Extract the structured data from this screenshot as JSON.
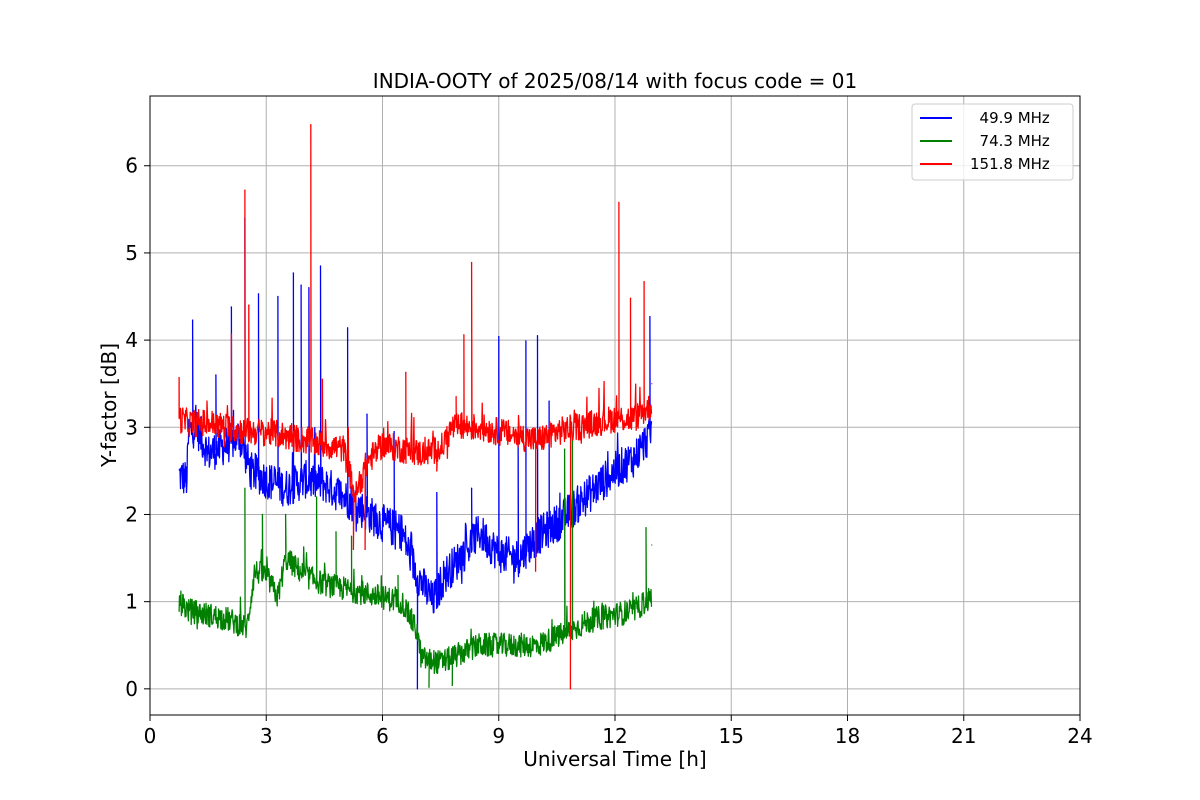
{
  "chart_data": {
    "type": "line",
    "title": "INDIA-OOTY of 2025/08/14 with focus code = 01",
    "xlabel": "Universal Time [h]",
    "ylabel": "Y-factor [dB]",
    "xlim": [
      0,
      24
    ],
    "ylim": [
      -0.3,
      6.8
    ],
    "xticks": [
      0,
      3,
      6,
      9,
      12,
      15,
      18,
      21,
      24
    ],
    "xtick_labels": [
      "0",
      "3",
      "6",
      "9",
      "12",
      "15",
      "18",
      "21",
      "24"
    ],
    "yticks": [
      0,
      1,
      2,
      3,
      4,
      5,
      6
    ],
    "ytick_labels": [
      "0",
      "1",
      "2",
      "3",
      "4",
      "5",
      "6"
    ],
    "grid": true,
    "legend_position": "top-right",
    "series": [
      {
        "name": "  49.9 MHz",
        "color": "#0000ff",
        "noise": 0.22,
        "baseline": [
          [
            0.75,
            2.45
          ],
          [
            0.95,
            2.4
          ],
          [
            1.0,
            2.95
          ],
          [
            1.2,
            3.0
          ],
          [
            1.5,
            2.7
          ],
          [
            2.0,
            2.8
          ],
          [
            2.3,
            2.9
          ],
          [
            2.6,
            2.5
          ],
          [
            3.0,
            2.4
          ],
          [
            3.5,
            2.3
          ],
          [
            4.0,
            2.4
          ],
          [
            4.5,
            2.35
          ],
          [
            5.0,
            2.2
          ],
          [
            5.5,
            2.05
          ],
          [
            6.0,
            1.9
          ],
          [
            6.5,
            1.8
          ],
          [
            6.9,
            1.3
          ],
          [
            7.3,
            1.0
          ],
          [
            7.6,
            1.3
          ],
          [
            8.0,
            1.5
          ],
          [
            8.5,
            1.8
          ],
          [
            9.0,
            1.55
          ],
          [
            9.5,
            1.5
          ],
          [
            10.0,
            1.75
          ],
          [
            10.5,
            1.9
          ],
          [
            11.0,
            2.1
          ],
          [
            11.5,
            2.3
          ],
          [
            12.0,
            2.5
          ],
          [
            12.5,
            2.65
          ],
          [
            12.95,
            2.95
          ]
        ],
        "spikes": [
          [
            1.1,
            4.23
          ],
          [
            1.7,
            3.6
          ],
          [
            2.1,
            4.38
          ],
          [
            2.45,
            5.4
          ],
          [
            2.8,
            4.53
          ],
          [
            3.3,
            4.5
          ],
          [
            3.7,
            4.77
          ],
          [
            3.9,
            4.63
          ],
          [
            4.1,
            4.6
          ],
          [
            4.4,
            4.85
          ],
          [
            5.1,
            4.14
          ],
          [
            5.6,
            3.15
          ],
          [
            6.3,
            2.95
          ],
          [
            6.9,
            0.0
          ],
          [
            7.4,
            2.25
          ],
          [
            8.3,
            2.3
          ],
          [
            9.0,
            4.04
          ],
          [
            9.5,
            3.0
          ],
          [
            9.7,
            3.99
          ],
          [
            10.0,
            4.05
          ],
          [
            10.3,
            3.3
          ],
          [
            12.9,
            4.27
          ]
        ]
      },
      {
        "name": "  74.3 MHz",
        "color": "#008000",
        "noise": 0.14,
        "baseline": [
          [
            0.75,
            1.0
          ],
          [
            1.0,
            0.9
          ],
          [
            1.5,
            0.85
          ],
          [
            2.0,
            0.8
          ],
          [
            2.5,
            0.7
          ],
          [
            2.7,
            1.35
          ],
          [
            3.0,
            1.3
          ],
          [
            3.3,
            1.05
          ],
          [
            3.5,
            1.5
          ],
          [
            4.0,
            1.3
          ],
          [
            4.5,
            1.2
          ],
          [
            5.0,
            1.15
          ],
          [
            5.5,
            1.1
          ],
          [
            6.0,
            1.05
          ],
          [
            6.5,
            1.0
          ],
          [
            6.9,
            0.65
          ],
          [
            7.0,
            0.35
          ],
          [
            7.5,
            0.3
          ],
          [
            8.0,
            0.4
          ],
          [
            8.5,
            0.5
          ],
          [
            9.0,
            0.5
          ],
          [
            9.5,
            0.5
          ],
          [
            10.0,
            0.5
          ],
          [
            10.5,
            0.6
          ],
          [
            10.8,
            0.65
          ],
          [
            11.2,
            0.75
          ],
          [
            11.5,
            0.8
          ],
          [
            12.0,
            0.85
          ],
          [
            12.5,
            0.9
          ],
          [
            12.95,
            1.05
          ]
        ],
        "spikes": [
          [
            2.45,
            2.3
          ],
          [
            2.9,
            2.0
          ],
          [
            3.5,
            2.0
          ],
          [
            4.3,
            2.2
          ],
          [
            4.8,
            1.8
          ],
          [
            5.2,
            1.75
          ],
          [
            6.4,
            1.3
          ],
          [
            7.2,
            0.02
          ],
          [
            7.8,
            0.04
          ],
          [
            10.7,
            2.75
          ],
          [
            10.9,
            2.9
          ],
          [
            12.8,
            1.85
          ],
          [
            12.95,
            1.65
          ]
        ]
      },
      {
        "name": "151.8 MHz",
        "color": "#ff0000",
        "noise": 0.16,
        "baseline": [
          [
            0.75,
            3.1
          ],
          [
            1.0,
            3.05
          ],
          [
            1.5,
            3.05
          ],
          [
            2.0,
            3.0
          ],
          [
            2.5,
            2.95
          ],
          [
            3.0,
            2.95
          ],
          [
            3.5,
            2.9
          ],
          [
            4.0,
            2.85
          ],
          [
            4.5,
            2.8
          ],
          [
            5.0,
            2.75
          ],
          [
            5.3,
            2.2
          ],
          [
            5.6,
            2.6
          ],
          [
            6.0,
            2.8
          ],
          [
            6.5,
            2.75
          ],
          [
            7.0,
            2.7
          ],
          [
            7.5,
            2.75
          ],
          [
            7.8,
            3.0
          ],
          [
            8.5,
            3.0
          ],
          [
            9.0,
            2.95
          ],
          [
            9.5,
            2.9
          ],
          [
            10.0,
            2.85
          ],
          [
            10.5,
            2.95
          ],
          [
            11.0,
            3.0
          ],
          [
            11.5,
            3.05
          ],
          [
            12.0,
            3.1
          ],
          [
            12.5,
            3.1
          ],
          [
            12.95,
            3.25
          ]
        ],
        "spikes": [
          [
            0.75,
            3.57
          ],
          [
            2.1,
            4.07
          ],
          [
            2.45,
            5.72
          ],
          [
            2.55,
            4.4
          ],
          [
            4.15,
            6.47
          ],
          [
            4.45,
            3.55
          ],
          [
            5.25,
            1.6
          ],
          [
            5.55,
            1.6
          ],
          [
            6.6,
            3.63
          ],
          [
            7.4,
            2.5
          ],
          [
            7.9,
            3.35
          ],
          [
            8.1,
            4.06
          ],
          [
            8.3,
            4.89
          ],
          [
            9.95,
            1.35
          ],
          [
            10.85,
            0.0
          ],
          [
            12.1,
            5.58
          ],
          [
            12.4,
            4.48
          ],
          [
            12.75,
            4.67
          ],
          [
            12.95,
            3.5
          ]
        ]
      }
    ]
  }
}
